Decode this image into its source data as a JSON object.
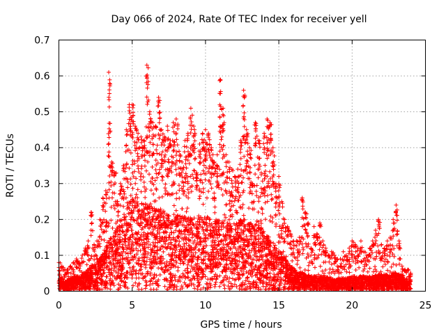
{
  "chart_data": {
    "type": "scatter",
    "title": "Day 066 of 2024, Rate Of TEC Index for receiver yell",
    "xlabel": "GPS time / hours",
    "ylabel": "ROTI / TECUs",
    "xlim": [
      0,
      25
    ],
    "ylim": [
      0,
      0.7
    ],
    "xticks": [
      0,
      5,
      10,
      15,
      20,
      25
    ],
    "yticks": [
      0,
      0.1,
      0.2,
      0.3,
      0.4,
      0.5,
      0.6,
      0.7
    ],
    "xtick_labels": [
      "0",
      "5",
      "10",
      "15",
      "20",
      "25"
    ],
    "ytick_labels": [
      "0",
      "0.1",
      "0.2",
      "0.3",
      "0.4",
      "0.5",
      "0.6",
      "0.7"
    ],
    "grid": true,
    "marker": "+",
    "marker_color": "#ff0000",
    "series": [
      {
        "name": "ROTI",
        "x": [
          0.0,
          0.2,
          0.4,
          0.6,
          0.8,
          1.0,
          1.2,
          1.4,
          1.6,
          1.8,
          2.0,
          2.2,
          2.4,
          2.6,
          2.8,
          3.0,
          3.2,
          3.4,
          3.6,
          3.8,
          4.0,
          4.2,
          4.4,
          4.6,
          4.8,
          5.0,
          5.2,
          5.4,
          5.6,
          5.8,
          6.0,
          6.2,
          6.4,
          6.6,
          6.8,
          7.0,
          7.2,
          7.4,
          7.6,
          7.8,
          8.0,
          8.2,
          8.4,
          8.6,
          8.8,
          9.0,
          9.2,
          9.4,
          9.6,
          9.8,
          10.0,
          10.2,
          10.4,
          10.6,
          10.8,
          11.0,
          11.2,
          11.4,
          11.6,
          11.8,
          12.0,
          12.2,
          12.4,
          12.6,
          12.8,
          13.0,
          13.2,
          13.4,
          13.6,
          13.8,
          14.0,
          14.2,
          14.4,
          14.6,
          14.8,
          15.0,
          15.2,
          15.4,
          15.6,
          15.8,
          16.0,
          16.2,
          16.4,
          16.6,
          16.8,
          17.0,
          17.2,
          17.4,
          17.6,
          17.8,
          18.0,
          18.2,
          18.4,
          18.6,
          18.8,
          19.0,
          19.2,
          19.4,
          19.6,
          19.8,
          20.0,
          20.2,
          20.4,
          20.6,
          20.8,
          21.0,
          21.2,
          21.4,
          21.6,
          21.8,
          22.0,
          22.2,
          22.4,
          22.6,
          22.8,
          23.0,
          23.2,
          23.4,
          23.6,
          23.8,
          24.0
        ],
        "peak": [
          0.08,
          0.07,
          0.06,
          0.06,
          0.07,
          0.08,
          0.09,
          0.08,
          0.1,
          0.12,
          0.14,
          0.22,
          0.13,
          0.14,
          0.2,
          0.26,
          0.28,
          0.61,
          0.36,
          0.33,
          0.25,
          0.3,
          0.35,
          0.45,
          0.52,
          0.52,
          0.46,
          0.44,
          0.43,
          0.42,
          0.63,
          0.5,
          0.47,
          0.46,
          0.54,
          0.45,
          0.43,
          0.46,
          0.42,
          0.47,
          0.48,
          0.39,
          0.36,
          0.42,
          0.44,
          0.51,
          0.46,
          0.33,
          0.41,
          0.44,
          0.45,
          0.44,
          0.4,
          0.36,
          0.38,
          0.59,
          0.51,
          0.38,
          0.36,
          0.34,
          0.32,
          0.34,
          0.42,
          0.56,
          0.45,
          0.4,
          0.3,
          0.47,
          0.42,
          0.33,
          0.44,
          0.48,
          0.47,
          0.4,
          0.3,
          0.32,
          0.25,
          0.2,
          0.18,
          0.16,
          0.14,
          0.14,
          0.15,
          0.26,
          0.22,
          0.19,
          0.12,
          0.18,
          0.16,
          0.19,
          0.14,
          0.12,
          0.1,
          0.11,
          0.1,
          0.09,
          0.09,
          0.11,
          0.1,
          0.12,
          0.14,
          0.13,
          0.12,
          0.14,
          0.11,
          0.1,
          0.12,
          0.14,
          0.17,
          0.2,
          0.13,
          0.12,
          0.14,
          0.15,
          0.2,
          0.24,
          0.14,
          0.07,
          0.06,
          0.06,
          0.05
        ],
        "dense": [
          0.04,
          0.035,
          0.03,
          0.03,
          0.035,
          0.04,
          0.04,
          0.04,
          0.045,
          0.05,
          0.06,
          0.07,
          0.07,
          0.08,
          0.09,
          0.1,
          0.12,
          0.14,
          0.15,
          0.16,
          0.17,
          0.18,
          0.2,
          0.22,
          0.24,
          0.25,
          0.25,
          0.25,
          0.24,
          0.24,
          0.23,
          0.23,
          0.22,
          0.22,
          0.22,
          0.22,
          0.21,
          0.21,
          0.21,
          0.21,
          0.2,
          0.2,
          0.2,
          0.2,
          0.2,
          0.2,
          0.2,
          0.2,
          0.2,
          0.2,
          0.2,
          0.2,
          0.19,
          0.19,
          0.19,
          0.19,
          0.19,
          0.19,
          0.18,
          0.18,
          0.18,
          0.18,
          0.19,
          0.19,
          0.19,
          0.18,
          0.18,
          0.18,
          0.17,
          0.17,
          0.16,
          0.15,
          0.14,
          0.13,
          0.12,
          0.11,
          0.1,
          0.09,
          0.08,
          0.07,
          0.06,
          0.055,
          0.05,
          0.05,
          0.045,
          0.045,
          0.04,
          0.04,
          0.04,
          0.04,
          0.04,
          0.04,
          0.035,
          0.035,
          0.035,
          0.035,
          0.035,
          0.035,
          0.035,
          0.035,
          0.04,
          0.04,
          0.04,
          0.04,
          0.04,
          0.04,
          0.04,
          0.04,
          0.045,
          0.045,
          0.045,
          0.045,
          0.045,
          0.045,
          0.05,
          0.05,
          0.045,
          0.04,
          0.035,
          0.035,
          0.03
        ]
      }
    ]
  }
}
